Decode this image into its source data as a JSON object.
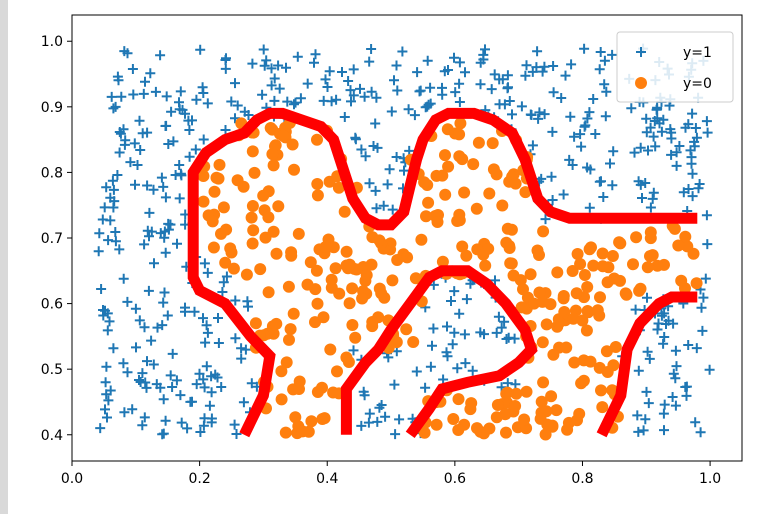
{
  "chart_data": {
    "type": "scatter",
    "title": "",
    "xlabel": "",
    "ylabel": "",
    "xlim": [
      0.0,
      1.05
    ],
    "ylim": [
      0.36,
      1.04
    ],
    "x_ticks": [
      "0.0",
      "0.2",
      "0.4",
      "0.6",
      "0.8",
      "1.0"
    ],
    "x_tick_values": [
      0.0,
      0.2,
      0.4,
      0.6,
      0.8,
      1.0
    ],
    "y_ticks": [
      "0.4",
      "0.5",
      "0.6",
      "0.7",
      "0.8",
      "0.9",
      "1.0"
    ],
    "y_tick_values": [
      0.4,
      0.5,
      0.6,
      0.7,
      0.8,
      0.9,
      1.0
    ],
    "grid": false,
    "legend_position": "top-right",
    "series": [
      {
        "name": "y=1",
        "marker": "plus",
        "color": "#1f77b4",
        "count": 560,
        "region": "points in x 0.04–1.0, y 0.40–1.00 lying outside the red decision boundary"
      },
      {
        "name": "y=0",
        "marker": "circle",
        "color": "#ff7f0e",
        "count": 380,
        "region": "points inside the red decision boundary"
      }
    ],
    "boundary_color": "#ff0000",
    "boundary_outer": [
      [
        0.27,
        0.4
      ],
      [
        0.3,
        0.46
      ],
      [
        0.31,
        0.52
      ],
      [
        0.28,
        0.55
      ],
      [
        0.24,
        0.6
      ],
      [
        0.2,
        0.62
      ],
      [
        0.19,
        0.64
      ],
      [
        0.19,
        0.8
      ],
      [
        0.21,
        0.83
      ],
      [
        0.24,
        0.85
      ],
      [
        0.27,
        0.86
      ],
      [
        0.29,
        0.88
      ],
      [
        0.31,
        0.89
      ],
      [
        0.33,
        0.89
      ],
      [
        0.36,
        0.88
      ],
      [
        0.39,
        0.87
      ],
      [
        0.41,
        0.85
      ],
      [
        0.42,
        0.82
      ],
      [
        0.43,
        0.79
      ],
      [
        0.44,
        0.76
      ],
      [
        0.46,
        0.73
      ],
      [
        0.48,
        0.72
      ],
      [
        0.5,
        0.72
      ],
      [
        0.52,
        0.74
      ],
      [
        0.53,
        0.78
      ],
      [
        0.54,
        0.82
      ],
      [
        0.55,
        0.85
      ],
      [
        0.57,
        0.88
      ],
      [
        0.59,
        0.89
      ],
      [
        0.63,
        0.89
      ],
      [
        0.66,
        0.88
      ],
      [
        0.69,
        0.86
      ],
      [
        0.71,
        0.82
      ],
      [
        0.72,
        0.79
      ],
      [
        0.73,
        0.76
      ],
      [
        0.75,
        0.74
      ],
      [
        0.78,
        0.73
      ],
      [
        0.98,
        0.73
      ]
    ],
    "boundary_inner": [
      [
        0.43,
        0.4
      ],
      [
        0.43,
        0.47
      ],
      [
        0.46,
        0.51
      ],
      [
        0.48,
        0.53
      ],
      [
        0.5,
        0.56
      ],
      [
        0.53,
        0.6
      ],
      [
        0.56,
        0.64
      ],
      [
        0.58,
        0.65
      ],
      [
        0.62,
        0.65
      ],
      [
        0.65,
        0.63
      ],
      [
        0.68,
        0.6
      ],
      [
        0.71,
        0.56
      ],
      [
        0.72,
        0.53
      ],
      [
        0.7,
        0.51
      ],
      [
        0.67,
        0.49
      ],
      [
        0.62,
        0.48
      ],
      [
        0.58,
        0.47
      ],
      [
        0.56,
        0.44
      ],
      [
        0.53,
        0.4
      ]
    ],
    "boundary_right": [
      [
        0.83,
        0.4
      ],
      [
        0.86,
        0.46
      ],
      [
        0.87,
        0.53
      ],
      [
        0.89,
        0.57
      ],
      [
        0.92,
        0.6
      ],
      [
        0.94,
        0.61
      ],
      [
        0.98,
        0.61
      ]
    ]
  }
}
